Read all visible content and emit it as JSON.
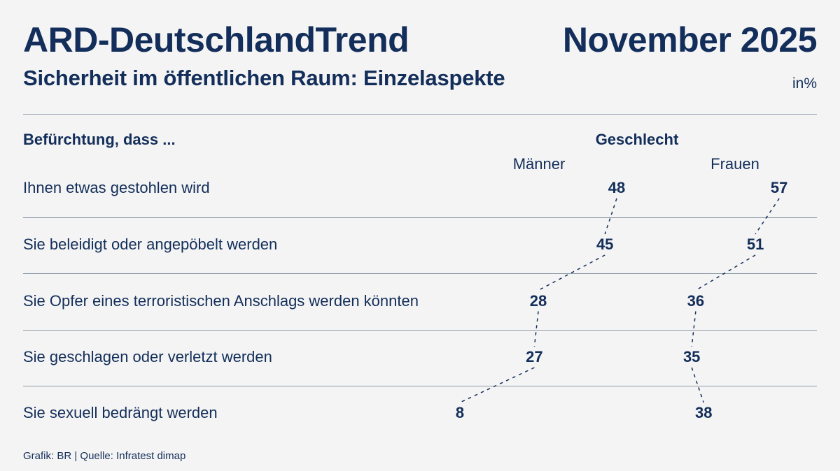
{
  "header": {
    "title": "ARD-DeutschlandTrend",
    "date": "November 2025",
    "subtitle": "Sicherheit im öffentlichen Raum: Einzelaspekte",
    "unit_label": "in%"
  },
  "footer": {
    "credit": "Grafik: BR | Quelle: Infratest dimap"
  },
  "chart_data": {
    "type": "table",
    "title": "Sicherheit im öffentlichen Raum: Einzelaspekte",
    "row_header": "Befürchtung, dass ...",
    "group_header": "Geschlecht",
    "unit": "%",
    "categories": [
      "Ihnen etwas gestohlen wird",
      "Sie beleidigt oder angepöbelt werden",
      "Sie Opfer eines terroristischen Anschlags werden könnten",
      "Sie geschlagen oder verletzt werden",
      "Sie sexuell bedrängt werden"
    ],
    "series": [
      {
        "name": "Männer",
        "values": [
          48,
          45,
          28,
          27,
          8
        ]
      },
      {
        "name": "Frauen",
        "values": [
          57,
          51,
          36,
          35,
          38
        ]
      }
    ],
    "layout_hints": {
      "value_position": "number labels offset horizontally proportional to value",
      "connector_style": "dashed lines link consecutive values of each series",
      "grid": "horizontal separator between rows"
    },
    "colors": {
      "text": "#132e5a",
      "separator": "#8d9aa9",
      "background": "#f4f4f4",
      "connector": "#132e5a"
    }
  }
}
